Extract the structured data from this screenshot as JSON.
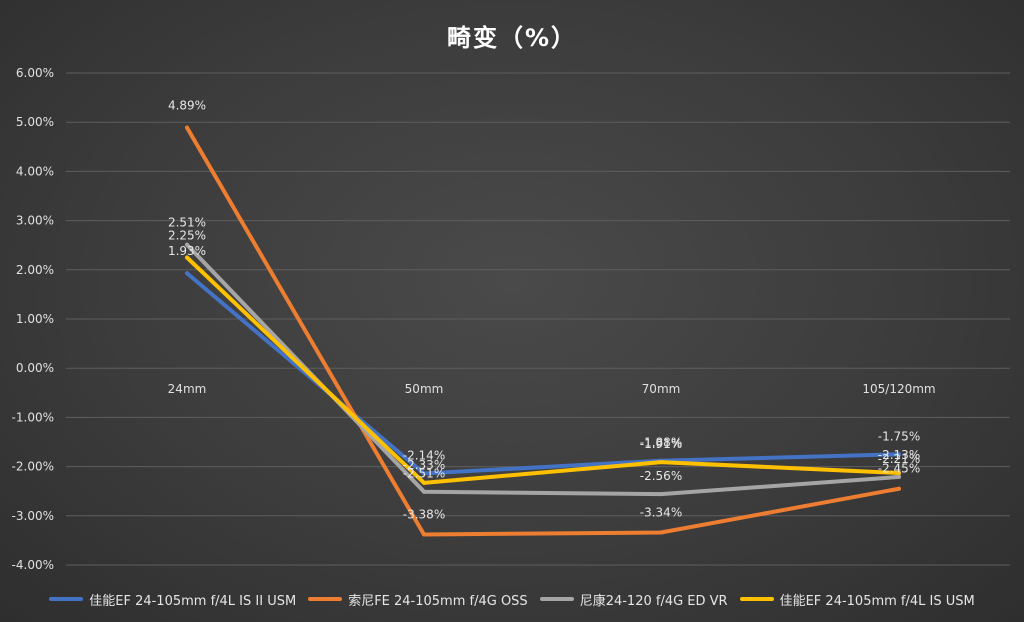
{
  "chart_data": {
    "type": "line",
    "title": "畸变（%）",
    "categories": [
      "24mm",
      "50mm",
      "70mm",
      "105/120mm"
    ],
    "ylim": [
      -4,
      6
    ],
    "y_ticks": [
      6,
      5,
      4,
      3,
      2,
      1,
      0,
      -1,
      -2,
      -3,
      -4
    ],
    "y_tick_labels": [
      "6.00%",
      "5.00%",
      "4.00%",
      "3.00%",
      "2.00%",
      "1.00%",
      "0.00%",
      "-1.00%",
      "-2.00%",
      "-3.00%",
      "-4.00%"
    ],
    "grid": true,
    "legend_position": "bottom",
    "series": [
      {
        "name": "佳能EF 24-105mm f/4L IS II USM",
        "color": "#4472c4",
        "values": [
          1.93,
          -2.14,
          -1.88,
          -1.75
        ],
        "labels": [
          "1.93%",
          "-2.14%",
          "-1.88%",
          "-1.75%"
        ]
      },
      {
        "name": "索尼FE 24-105mm f/4G OSS",
        "color": "#ed7d31",
        "values": [
          4.89,
          -3.38,
          -3.34,
          -2.45
        ],
        "labels": [
          "4.89%",
          "-3.38%",
          "-3.34%",
          "-2.45%"
        ]
      },
      {
        "name": "尼康24-120 f/4G ED VR",
        "color": "#a5a5a5",
        "values": [
          2.51,
          -2.51,
          -2.56,
          -2.21
        ],
        "labels": [
          "2.51%",
          "-2.51%",
          "-2.56%",
          "-2.21%"
        ]
      },
      {
        "name": "佳能EF 24-105mm f/4L IS  USM",
        "color": "#ffc000",
        "values": [
          2.25,
          -2.33,
          -1.91,
          -2.13
        ],
        "labels": [
          "2.25%",
          "-2.33%",
          "-1.91%",
          "-2.13%"
        ]
      }
    ]
  }
}
